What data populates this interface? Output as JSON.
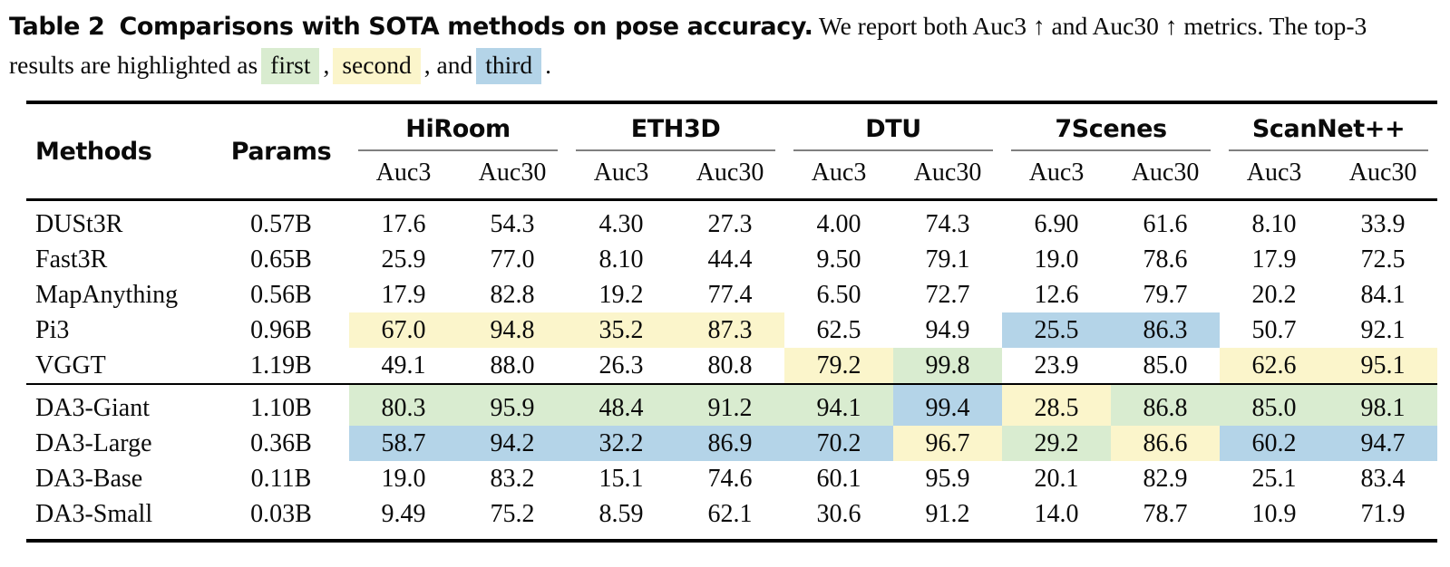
{
  "caption": {
    "label": "Table 2",
    "title": "Comparisons with SOTA methods on pose accuracy.",
    "text": "We report both Auc3 ↑ and Auc30 ↑ metrics. The top-3 results are highlighted as",
    "legend": [
      {
        "label": "first",
        "rank": "first",
        "color": "#d9ecd0"
      },
      {
        "label": "second",
        "rank": "second",
        "color": "#fbf5cb"
      },
      {
        "label": "third",
        "rank": "third",
        "color": "#b4d4e8"
      }
    ],
    "sep1": ",",
    "sep2": ", and",
    "sep3": "."
  },
  "table": {
    "methods_label": "Methods",
    "params_label": "Params",
    "groups": [
      "HiRoom",
      "ETH3D",
      "DTU",
      "7Scenes",
      "ScanNet++"
    ],
    "metrics": [
      "Auc3",
      "Auc30"
    ],
    "highlight_colors": {
      "first": "#d9ecd0",
      "second": "#fbf5cb",
      "third": "#b4d4e8"
    },
    "sections": [
      {
        "rows": [
          {
            "method": "DUSt3R",
            "params": "0.57B",
            "values": [
              "17.6",
              "54.3",
              "4.30",
              "27.3",
              "4.00",
              "74.3",
              "6.90",
              "61.6",
              "8.10",
              "33.9"
            ],
            "hl": [
              null,
              null,
              null,
              null,
              null,
              null,
              null,
              null,
              null,
              null
            ]
          },
          {
            "method": "Fast3R",
            "params": "0.65B",
            "values": [
              "25.9",
              "77.0",
              "8.10",
              "44.4",
              "9.50",
              "79.1",
              "19.0",
              "78.6",
              "17.9",
              "72.5"
            ],
            "hl": [
              null,
              null,
              null,
              null,
              null,
              null,
              null,
              null,
              null,
              null
            ]
          },
          {
            "method": "MapAnything",
            "params": "0.56B",
            "values": [
              "17.9",
              "82.8",
              "19.2",
              "77.4",
              "6.50",
              "72.7",
              "12.6",
              "79.7",
              "20.2",
              "84.1"
            ],
            "hl": [
              null,
              null,
              null,
              null,
              null,
              null,
              null,
              null,
              null,
              null
            ]
          },
          {
            "method": "Pi3",
            "params": "0.96B",
            "values": [
              "67.0",
              "94.8",
              "35.2",
              "87.3",
              "62.5",
              "94.9",
              "25.5",
              "86.3",
              "50.7",
              "92.1"
            ],
            "hl": [
              "second",
              "second",
              "second",
              "second",
              null,
              null,
              "third",
              "third",
              null,
              null
            ]
          },
          {
            "method": "VGGT",
            "params": "1.19B",
            "values": [
              "49.1",
              "88.0",
              "26.3",
              "80.8",
              "79.2",
              "99.8",
              "23.9",
              "85.0",
              "62.6",
              "95.1"
            ],
            "hl": [
              null,
              null,
              null,
              null,
              "second",
              "first",
              null,
              null,
              "second",
              "second"
            ]
          }
        ]
      },
      {
        "rows": [
          {
            "method": "DA3-Giant",
            "params": "1.10B",
            "values": [
              "80.3",
              "95.9",
              "48.4",
              "91.2",
              "94.1",
              "99.4",
              "28.5",
              "86.8",
              "85.0",
              "98.1"
            ],
            "hl": [
              "first",
              "first",
              "first",
              "first",
              "first",
              "third",
              "second",
              "first",
              "first",
              "first"
            ]
          },
          {
            "method": "DA3-Large",
            "params": "0.36B",
            "values": [
              "58.7",
              "94.2",
              "32.2",
              "86.9",
              "70.2",
              "96.7",
              "29.2",
              "86.6",
              "60.2",
              "94.7"
            ],
            "hl": [
              "third",
              "third",
              "third",
              "third",
              "third",
              "second",
              "first",
              "second",
              "third",
              "third"
            ]
          },
          {
            "method": "DA3-Base",
            "params": "0.11B",
            "values": [
              "19.0",
              "83.2",
              "15.1",
              "74.6",
              "60.1",
              "95.9",
              "20.1",
              "82.9",
              "25.1",
              "83.4"
            ],
            "hl": [
              null,
              null,
              null,
              null,
              null,
              null,
              null,
              null,
              null,
              null
            ]
          },
          {
            "method": "DA3-Small",
            "params": "0.03B",
            "values": [
              "9.49",
              "75.2",
              "8.59",
              "62.1",
              "30.6",
              "91.2",
              "14.0",
              "78.7",
              "10.9",
              "71.9"
            ],
            "hl": [
              null,
              null,
              null,
              null,
              null,
              null,
              null,
              null,
              null,
              null
            ]
          }
        ]
      }
    ]
  }
}
